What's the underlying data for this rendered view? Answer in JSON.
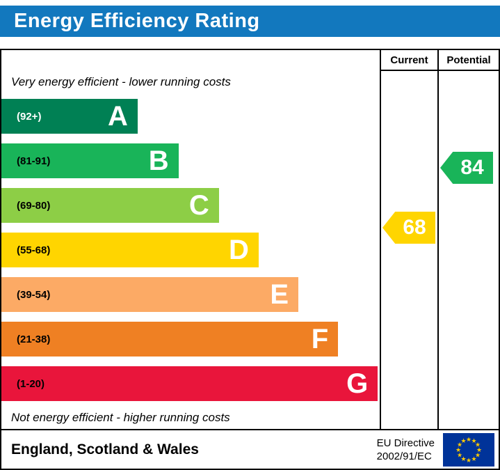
{
  "header": {
    "title": "Energy Efficiency Rating"
  },
  "columns": {
    "current": "Current",
    "potential": "Potential"
  },
  "chart_data": {
    "type": "bar",
    "title": "Energy Efficiency Rating",
    "top_caption": "Very energy efficient - lower running costs",
    "bottom_caption": "Not energy efficient - higher running costs",
    "bands": [
      {
        "letter": "A",
        "range": "(92+)",
        "color": "#008054",
        "range_color": "#ffffff",
        "width_pct": 36
      },
      {
        "letter": "B",
        "range": "(81-91)",
        "color": "#19b459",
        "range_color": "#000000",
        "width_pct": 46.8
      },
      {
        "letter": "C",
        "range": "(69-80)",
        "color": "#8dce46",
        "range_color": "#000000",
        "width_pct": 57.5
      },
      {
        "letter": "D",
        "range": "(55-68)",
        "color": "#ffd500",
        "range_color": "#000000",
        "width_pct": 68
      },
      {
        "letter": "E",
        "range": "(39-54)",
        "color": "#fcaa65",
        "range_color": "#000000",
        "width_pct": 78.5
      },
      {
        "letter": "F",
        "range": "(21-38)",
        "color": "#ef8023",
        "range_color": "#000000",
        "width_pct": 89
      },
      {
        "letter": "G",
        "range": "(1-20)",
        "color": "#e9153b",
        "range_color": "#000000",
        "width_pct": 99.5
      }
    ],
    "current": {
      "value": 68,
      "band": "D",
      "color": "#ffd500"
    },
    "potential": {
      "value": 84,
      "band": "B",
      "color": "#19b459"
    }
  },
  "footer": {
    "region": "England, Scotland & Wales",
    "directive_line1": "EU Directive",
    "directive_line2": "2002/91/EC"
  },
  "colors": {
    "header_bg": "#1278be",
    "flag_bg": "#003399",
    "flag_star": "#ffcc00"
  }
}
